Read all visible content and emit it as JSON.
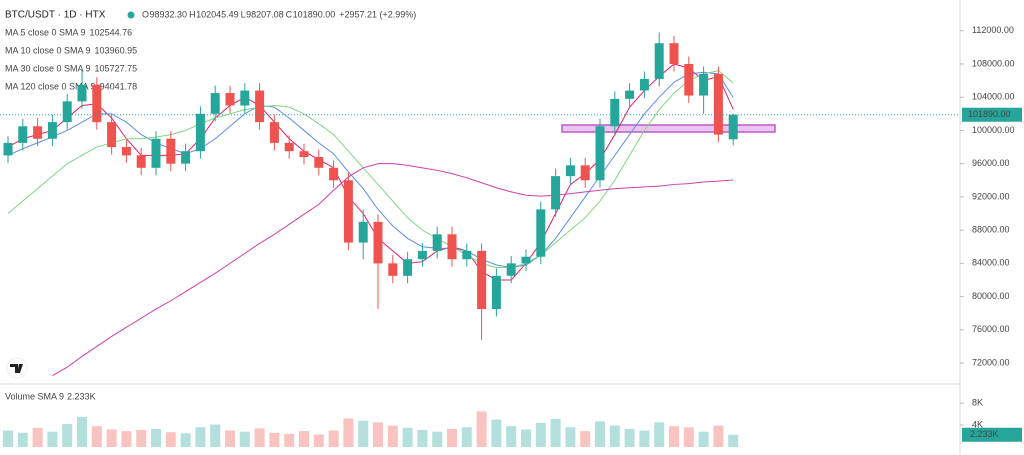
{
  "chart_data": {
    "type": "candlestick",
    "symbol": "BTC/USDT · 1D · HTX",
    "header": [
      {
        "key": "O",
        "value": "98932.30"
      },
      {
        "key": "H",
        "value": "102045.49"
      },
      {
        "key": "L",
        "value": "98207.08"
      },
      {
        "key": "C",
        "value": "101890.00"
      }
    ],
    "change": "+2957.21 (+2.99%)",
    "up_color": "#26a69a",
    "down_color": "#ef5350",
    "open": [
      97000,
      98500,
      100500,
      99000,
      101000,
      103500,
      105500,
      101000,
      98000,
      97000,
      95500,
      99000,
      96000,
      97500,
      102000,
      104500,
      103000,
      104800,
      101000,
      98500,
      97500,
      96800,
      95500,
      94000,
      86500,
      89000,
      84000,
      82500,
      84500,
      85500,
      87500,
      84500,
      85500,
      78500,
      82500,
      84000,
      84800,
      90500,
      94500,
      95800,
      94000,
      100500,
      103800,
      104800,
      106200,
      110500,
      108000,
      104200,
      106800,
      98932.3
    ],
    "high": [
      99300,
      101400,
      101500,
      101900,
      104400,
      107500,
      106400,
      101900,
      98900,
      97900,
      99900,
      99900,
      98400,
      102900,
      105400,
      105400,
      105700,
      105700,
      101900,
      99400,
      98400,
      97700,
      96400,
      95000,
      90500,
      89900,
      85000,
      85400,
      86400,
      88400,
      88400,
      86400,
      86400,
      83400,
      84900,
      85700,
      91400,
      95400,
      96700,
      96700,
      101400,
      104700,
      105700,
      107100,
      111800,
      111400,
      108900,
      107700,
      107700,
      102045.49
    ],
    "low": [
      96100,
      97600,
      98100,
      98100,
      100100,
      102600,
      100100,
      97100,
      96100,
      94600,
      94600,
      95100,
      95100,
      96600,
      101100,
      102100,
      102100,
      100100,
      97600,
      96600,
      95900,
      94600,
      93100,
      85600,
      84500,
      78500,
      81600,
      81600,
      83600,
      84600,
      83600,
      83600,
      74800,
      77600,
      81600,
      83100,
      83900,
      89600,
      93600,
      93100,
      93100,
      99600,
      102900,
      103900,
      105300,
      107100,
      103300,
      102000,
      98600,
      98207.08
    ],
    "close": [
      98500,
      100500,
      99000,
      101000,
      103500,
      105500,
      101000,
      98000,
      97000,
      95500,
      99000,
      96000,
      97500,
      102000,
      104500,
      103000,
      104800,
      101000,
      98500,
      97500,
      96800,
      95500,
      94000,
      86500,
      89000,
      84000,
      82500,
      84500,
      85500,
      87500,
      84500,
      85500,
      78500,
      82500,
      84000,
      84800,
      90500,
      94500,
      95800,
      94000,
      100500,
      103800,
      104800,
      106200,
      110500,
      108000,
      104200,
      106800,
      99500,
      101890
    ],
    "last_price_label": "101890.00",
    "ylim": [
      69600,
      115700
    ],
    "yticks": [
      {
        "value": 112000,
        "label": "112000.00"
      },
      {
        "value": 108000,
        "label": "108000.00"
      },
      {
        "value": 104000,
        "label": "104000.00"
      },
      {
        "value": 100000,
        "label": "100000.00"
      },
      {
        "value": 96000,
        "label": "96000.00"
      },
      {
        "value": 92000,
        "label": "92000.00"
      },
      {
        "value": 88000,
        "label": "88000.00"
      },
      {
        "value": 84000,
        "label": "84000.00"
      },
      {
        "value": 80000,
        "label": "80000.00"
      },
      {
        "value": 76000,
        "label": "76000.00"
      },
      {
        "value": 72000,
        "label": "72000.00"
      }
    ],
    "series": [
      {
        "name": "MA 5 close 0 SMA 9",
        "color": "#e91e63",
        "value_label": "102544.76",
        "values": [
          98000,
          99000,
          99500,
          100000,
          101500,
          103000,
          103200,
          101500,
          99000,
          97000,
          97000,
          97000,
          97200,
          99000,
          101500,
          103000,
          104000,
          103000,
          101000,
          99000,
          97500,
          96500,
          95500,
          92000,
          90000,
          87000,
          85500,
          84000,
          84200,
          85500,
          86000,
          85500,
          83000,
          82000,
          82000,
          84000,
          86500,
          90000,
          93500,
          94800,
          96500,
          99500,
          102800,
          104800,
          106500,
          108000,
          107500,
          106000,
          106500,
          102544.76
        ]
      },
      {
        "name": "MA 10 close 0 SMA 9",
        "color": "#5b8def",
        "value_label": "103960.95",
        "values": [
          97000,
          97800,
          98500,
          99200,
          100000,
          101000,
          102000,
          102000,
          101000,
          99500,
          98500,
          97800,
          97200,
          97800,
          99000,
          100500,
          102000,
          103000,
          102800,
          101500,
          100000,
          98500,
          97200,
          95000,
          93000,
          90500,
          88500,
          87000,
          86000,
          85800,
          85800,
          85500,
          84500,
          83800,
          83500,
          83800,
          85000,
          87000,
          89500,
          92000,
          94500,
          97000,
          99500,
          102000,
          104000,
          105800,
          106800,
          107000,
          106800,
          103960.95
        ]
      },
      {
        "name": "MA 30 close 0 SMA 9",
        "color": "#7ed67e",
        "value_label": "105727.75",
        "values": [
          90000,
          91500,
          93000,
          94500,
          96000,
          97000,
          98000,
          98500,
          99000,
          99000,
          99200,
          99500,
          100000,
          100800,
          101500,
          102000,
          102500,
          102800,
          103000,
          102800,
          102000,
          100800,
          99500,
          97500,
          95500,
          93500,
          91500,
          89500,
          88000,
          87000,
          86000,
          85000,
          84000,
          83500,
          83500,
          84000,
          85000,
          86500,
          88000,
          89500,
          91500,
          94000,
          97000,
          100000,
          102500,
          104500,
          106000,
          106800,
          107200,
          105727.75
        ]
      },
      {
        "name": "MA 120 close 0 SMA 9",
        "color": "#d03fae",
        "value_label": "94041.78",
        "values": [
          null,
          null,
          null,
          70500,
          71500,
          72800,
          74000,
          75200,
          76300,
          77400,
          78500,
          79500,
          80600,
          81700,
          82800,
          84000,
          85200,
          86400,
          87500,
          88700,
          89900,
          91100,
          92800,
          94400,
          95500,
          96000,
          96000,
          95800,
          95500,
          95200,
          94800,
          94300,
          93700,
          93100,
          92600,
          92200,
          92100,
          92200,
          92400,
          92600,
          92800,
          93000,
          93100,
          93200,
          93300,
          93500,
          93600,
          93800,
          93900,
          94041.78
        ]
      }
    ],
    "volume": {
      "name": "Volume SMA 9",
      "value_label": "2.233K",
      "values": [
        3000,
        2600,
        3500,
        2800,
        4200,
        5500,
        3800,
        3200,
        2900,
        3100,
        3300,
        2700,
        2500,
        3600,
        4100,
        3000,
        2800,
        3400,
        2600,
        2400,
        2900,
        2300,
        3000,
        5200,
        4800,
        4500,
        3900,
        3500,
        3100,
        2800,
        3300,
        3600,
        6500,
        5000,
        3800,
        3200,
        4400,
        5100,
        3600,
        2900,
        4700,
        3900,
        3300,
        3000,
        4500,
        3800,
        3600,
        2800,
        3900,
        2233
      ],
      "ylim": [
        0,
        10400
      ],
      "yticks": [
        {
          "value": 8000,
          "label": "8K"
        },
        {
          "value": 4000,
          "label": "4K"
        }
      ]
    }
  }
}
